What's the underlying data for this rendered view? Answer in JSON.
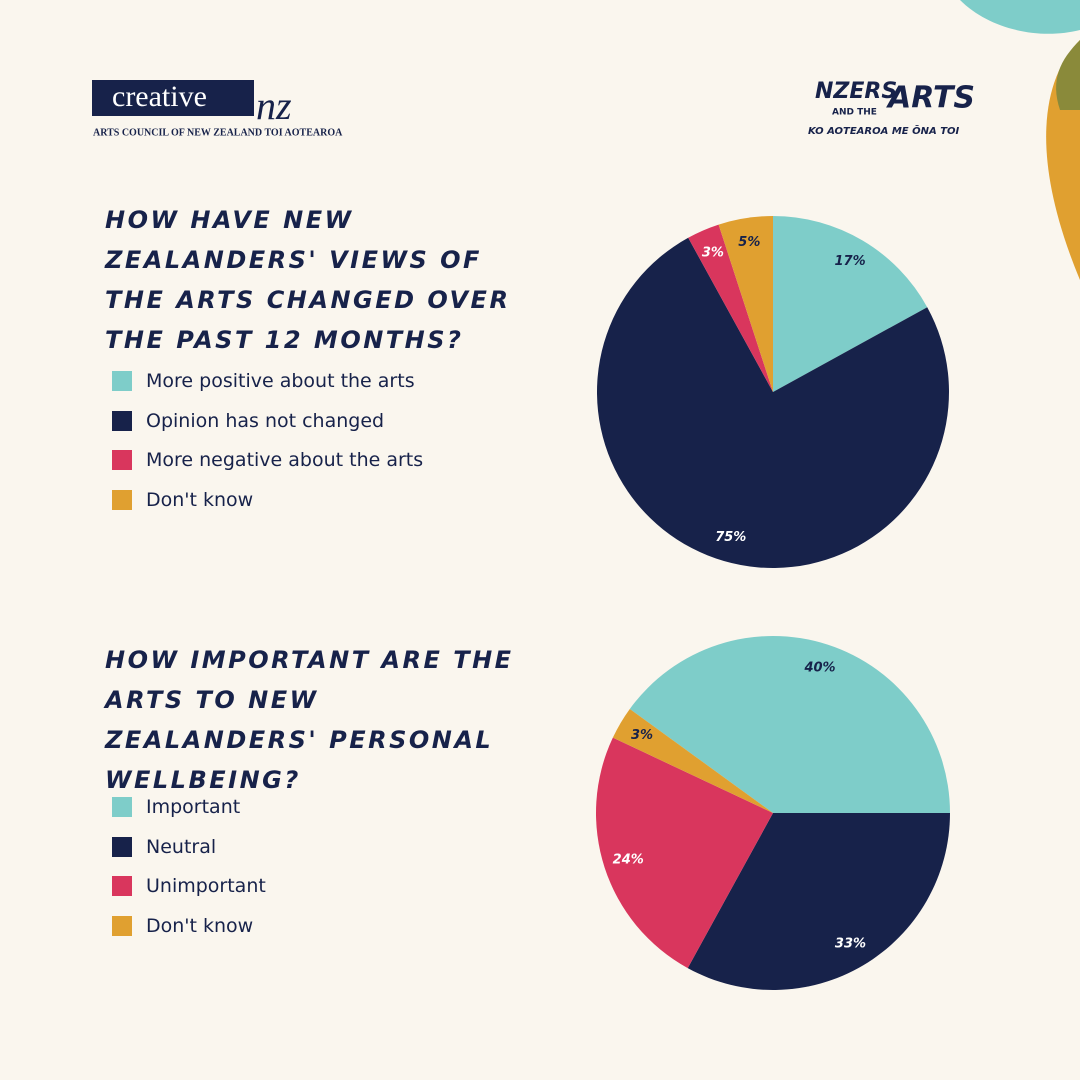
{
  "header": {
    "logo": "creative",
    "logo_mark": "nz",
    "logo_subtitle": "ARTS COUNCIL OF NEW ZEALAND  TOI AOTEAROA",
    "series_title_a": "NZERS",
    "series_title_b": "AND THE",
    "series_title_c": "ARTS",
    "series_subtitle": "KO AOTEAROA ME ŌNA TOI"
  },
  "chart_data": [
    {
      "type": "pie",
      "title": "HOW HAVE NEW ZEALANDERS' VIEWS OF THE ARTS CHANGED OVER THE PAST 12 MONTHS?",
      "categories": [
        "More positive about the arts",
        "Opinion has not changed",
        "More negative about the arts",
        "Don't know"
      ],
      "values": [
        17,
        75,
        3,
        5
      ],
      "value_labels": [
        "17%",
        "75%",
        "3%",
        "5%"
      ],
      "colors": [
        "#7ecdc9",
        "#17224a",
        "#d9365d",
        "#e0a030"
      ]
    },
    {
      "type": "pie",
      "title": "HOW IMPORTANT ARE THE ARTS TO NEW ZEALANDERS' PERSONAL WELLBEING?",
      "categories": [
        "Important",
        "Neutral",
        "Unimportant",
        "Don't know"
      ],
      "values": [
        40,
        33,
        24,
        3
      ],
      "value_labels": [
        "40%",
        "33%",
        "24%",
        "3%"
      ],
      "colors": [
        "#7ecdc9",
        "#17224a",
        "#d9365d",
        "#e0a030"
      ]
    }
  ]
}
